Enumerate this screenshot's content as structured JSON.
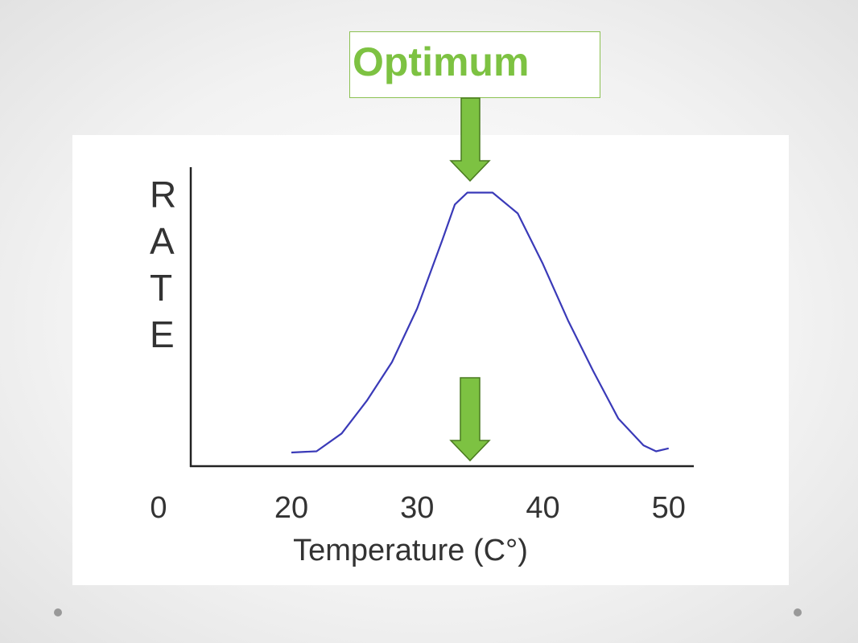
{
  "chart_data": {
    "type": "line",
    "annotation": "Optimum",
    "ylabel": "RATE",
    "xlabel": "Temperature (C°)",
    "origin_label": "0",
    "x": [
      20,
      22,
      24,
      26,
      28,
      30,
      32,
      33,
      34,
      36,
      38,
      40,
      42,
      44,
      46,
      48,
      49,
      50
    ],
    "series": [
      {
        "color": "#3a3ab8",
        "values": [
          4.6,
          5,
          11,
          22,
          35,
          53,
          76,
          88,
          92,
          92,
          85,
          68,
          49,
          32,
          16,
          7,
          5,
          6
        ]
      }
    ],
    "xlim": [
      12,
      52
    ],
    "xticks": [
      20,
      30,
      40,
      50
    ],
    "ylim": [
      0,
      100
    ]
  }
}
